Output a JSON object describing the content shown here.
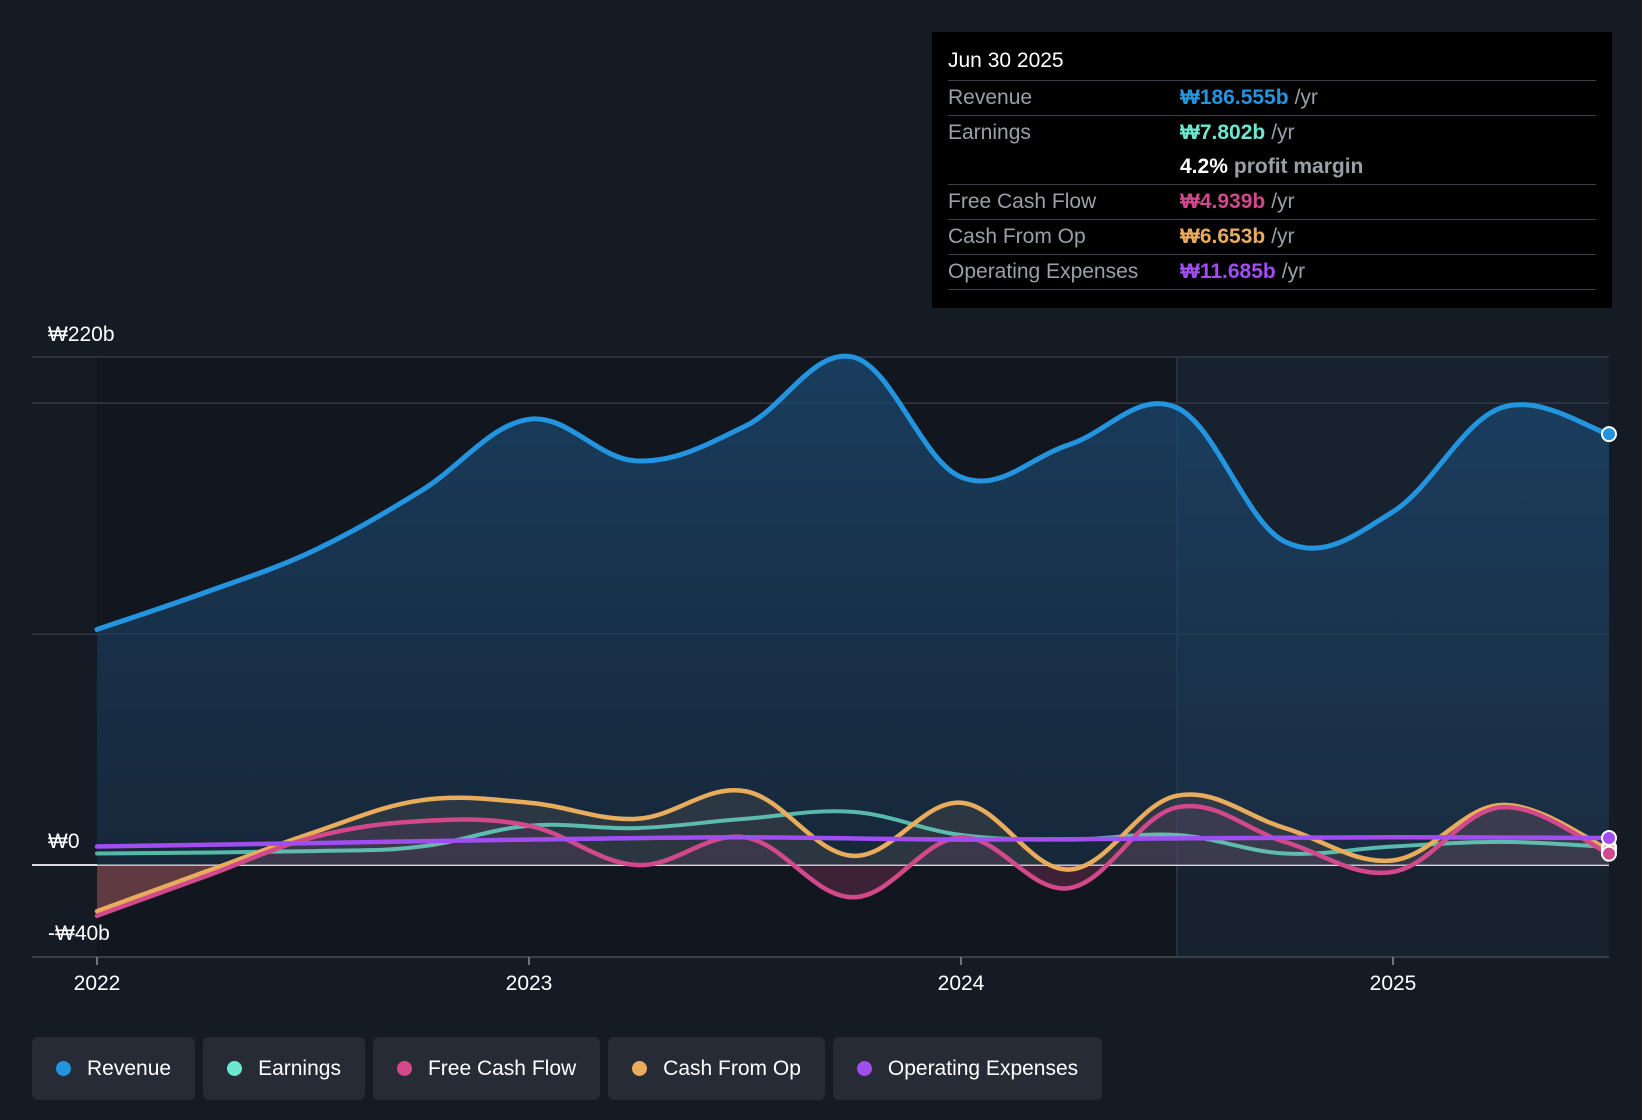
{
  "tooltip": {
    "date": "Jun 30 2025",
    "rows": {
      "revenue": {
        "label": "Revenue",
        "value": "₩186.555b",
        "unit": "/yr",
        "color": "#2394df"
      },
      "earnings": {
        "label": "Earnings",
        "value": "₩7.802b",
        "unit": "/yr",
        "color": "#6de8d0"
      },
      "margin": {
        "pct": "4.2%",
        "text": "profit margin"
      },
      "fcf": {
        "label": "Free Cash Flow",
        "value": "₩4.939b",
        "unit": "/yr",
        "color": "#d2498b"
      },
      "cfo": {
        "label": "Cash From Op",
        "value": "₩6.653b",
        "unit": "/yr",
        "color": "#e8ac5c"
      },
      "opex": {
        "label": "Operating Expenses",
        "value": "₩11.685b",
        "unit": "/yr",
        "color": "#a04ef0"
      }
    }
  },
  "legend": [
    {
      "key": "revenue",
      "label": "Revenue",
      "color": "#2394df"
    },
    {
      "key": "earnings",
      "label": "Earnings",
      "color": "#6de8d0"
    },
    {
      "key": "fcf",
      "label": "Free Cash Flow",
      "color": "#d2498b"
    },
    {
      "key": "cfo",
      "label": "Cash From Op",
      "color": "#e8ac5c"
    },
    {
      "key": "opex",
      "label": "Operating Expenses",
      "color": "#a04ef0"
    }
  ],
  "chart_data": {
    "type": "line",
    "title": "",
    "y_axis_labels": {
      "top": "₩220b",
      "zero": "₩0",
      "bottom": "-₩40b"
    },
    "ylim": [
      -40,
      220
    ],
    "xlim": [
      2022.0,
      2025.5
    ],
    "x_ticks": [
      {
        "value": 2022,
        "label": "2022"
      },
      {
        "value": 2023,
        "label": "2023"
      },
      {
        "value": 2024,
        "label": "2024"
      },
      {
        "value": 2025,
        "label": "2025"
      }
    ],
    "y_gridlines": [
      220,
      200,
      100,
      0
    ],
    "past_data_start": 2024.5,
    "series": [
      {
        "key": "earnings",
        "name": "Earnings",
        "color": "#6de8d0",
        "fill": false,
        "x": [
          2022.0,
          2022.5,
          2022.75,
          2023.0,
          2023.25,
          2023.5,
          2023.75,
          2024.0,
          2024.25,
          2024.5,
          2024.75,
          2025.0,
          2025.25,
          2025.5
        ],
        "y": [
          5,
          6,
          8,
          17,
          16,
          20,
          23,
          13,
          11,
          13,
          5,
          8,
          10,
          7.8
        ]
      },
      {
        "key": "cfo",
        "name": "Cash From Op",
        "color": "#e8ac5c",
        "fill": true,
        "x": [
          2022.0,
          2022.25,
          2022.5,
          2022.75,
          2023.0,
          2023.25,
          2023.5,
          2023.75,
          2024.0,
          2024.25,
          2024.5,
          2024.75,
          2025.0,
          2025.25,
          2025.5
        ],
        "y": [
          -20,
          -3,
          14,
          28,
          27,
          20,
          32,
          4,
          27,
          -2,
          30,
          16,
          2,
          26,
          6.7
        ]
      },
      {
        "key": "fcf",
        "name": "Free Cash Flow",
        "color": "#d2498b",
        "fill": true,
        "x": [
          2022.0,
          2022.25,
          2022.5,
          2022.75,
          2023.0,
          2023.25,
          2023.5,
          2023.75,
          2024.0,
          2024.25,
          2024.5,
          2024.75,
          2025.0,
          2025.25,
          2025.5
        ],
        "y": [
          -22,
          -5,
          12,
          19,
          17,
          0,
          12,
          -14,
          12,
          -10,
          25,
          10,
          -3,
          25,
          4.9
        ]
      },
      {
        "key": "opex",
        "name": "Operating Expenses",
        "color": "#a04ef0",
        "fill": false,
        "x": [
          2022.0,
          2022.5,
          2023.0,
          2023.5,
          2024.0,
          2024.5,
          2025.0,
          2025.5
        ],
        "y": [
          8,
          9.5,
          11,
          12,
          11,
          11.5,
          12,
          11.7
        ]
      },
      {
        "key": "revenue",
        "name": "Revenue",
        "color": "#2394df",
        "fill": true,
        "x": [
          2022.0,
          2022.25,
          2022.5,
          2022.75,
          2023.0,
          2023.25,
          2023.5,
          2023.75,
          2024.0,
          2024.25,
          2024.5,
          2024.75,
          2025.0,
          2025.25,
          2025.5
        ],
        "y": [
          102,
          118,
          136,
          162,
          193,
          175,
          190,
          220,
          168,
          182,
          198,
          140,
          153,
          198,
          186.6
        ]
      }
    ]
  }
}
